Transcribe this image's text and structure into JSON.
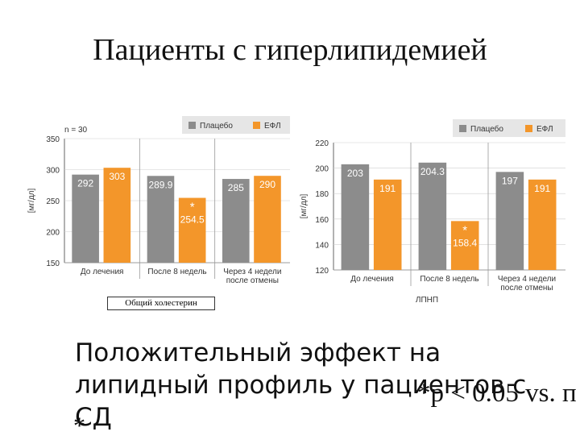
{
  "title": "Пациенты с гиперлипидемией",
  "caption": "Общий холестерин",
  "body_lines": [
    "Положительный эффект на",
    "липидный профиль у пациентов с",
    "СД"
  ],
  "p_note": "*p < 0.05 vs. п",
  "star_note": "*",
  "colors": {
    "placebo": "#8c8c8c",
    "efl": "#f3962a",
    "grid": "#666666",
    "text": "#333333",
    "legend_bg": "#e6e6e6"
  },
  "chart_data": [
    {
      "type": "bar",
      "n_label": "n = 30",
      "legend": [
        "Плацебо",
        "ЕФЛ"
      ],
      "ylabel": "[мг/дл]",
      "xlabel": "",
      "ylim": [
        150,
        350
      ],
      "yticks": [
        150,
        200,
        250,
        300,
        350
      ],
      "categories": [
        [
          "До лечения"
        ],
        [
          "После 8 недель"
        ],
        [
          "Через 4 недели",
          "после отмены"
        ]
      ],
      "series": [
        {
          "name": "Плацебо",
          "values": [
            292,
            289.9,
            285
          ],
          "labels": [
            "292",
            "289.9",
            "285"
          ]
        },
        {
          "name": "ЕФЛ",
          "values": [
            303,
            254.5,
            290
          ],
          "labels": [
            "303",
            "254.5",
            "290"
          ]
        }
      ],
      "significance": [
        null,
        "*",
        null
      ]
    },
    {
      "type": "bar",
      "legend": [
        "Плацебо",
        "ЕФЛ"
      ],
      "ylabel": "[мг/дл]",
      "xlabel": "ЛПНП",
      "ylim": [
        120,
        220
      ],
      "yticks": [
        120,
        140,
        160,
        180,
        200,
        220
      ],
      "categories": [
        [
          "До лечения"
        ],
        [
          "После 8 недель"
        ],
        [
          "Через 4 недели",
          "после отмены"
        ]
      ],
      "series": [
        {
          "name": "Плацебо",
          "values": [
            203,
            204.3,
            197
          ],
          "labels": [
            "203",
            "204.3",
            "197"
          ]
        },
        {
          "name": "ЕФЛ",
          "values": [
            191,
            158.4,
            191
          ],
          "labels": [
            "191",
            "158.4",
            "191"
          ]
        }
      ],
      "significance": [
        null,
        "*",
        null
      ]
    }
  ]
}
